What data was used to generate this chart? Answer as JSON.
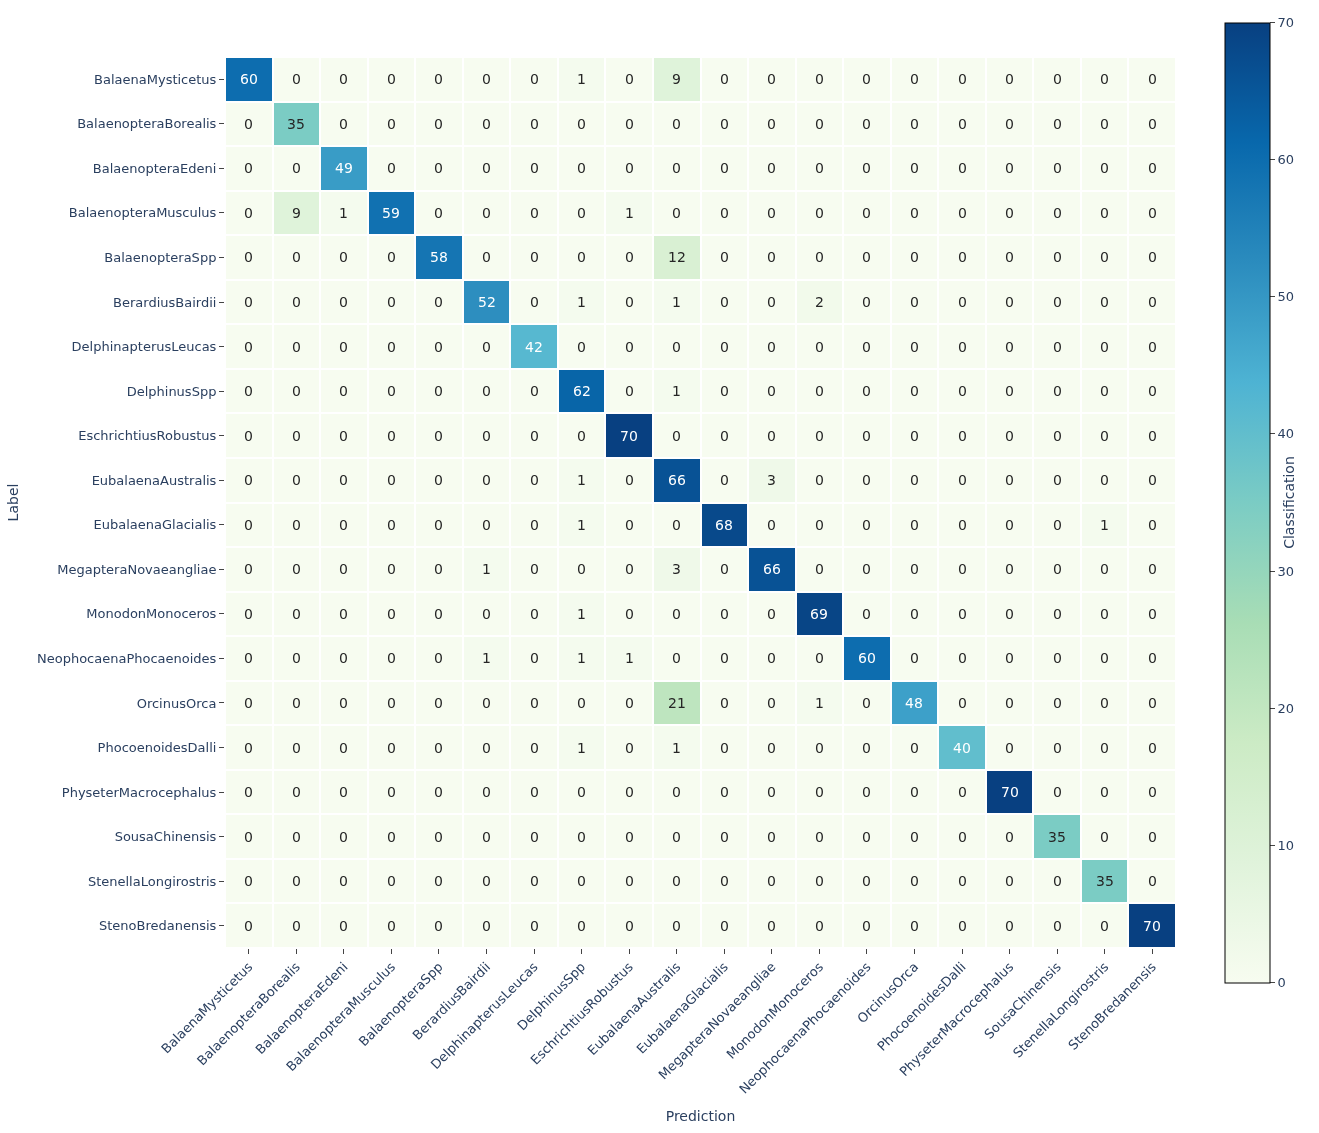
{
  "chart_data": {
    "type": "heatmap",
    "xlabel": "Prediction",
    "ylabel": "Label",
    "clabel": "Classification",
    "categories": [
      "BalaenaMysticetus",
      "BalaenopteraBorealis",
      "BalaenopteraEdeni",
      "BalaenopteraMusculus",
      "BalaenopteraSpp",
      "BerardiusBairdii",
      "DelphinapterusLeucas",
      "DelphinusSpp",
      "EschrichtiusRobustus",
      "EubalaenaAustralis",
      "EubalaenaGlacialis",
      "MegapteraNovaeangliae",
      "MonodonMonoceros",
      "NeophocaenaPhocaenoides",
      "OrcinusOrca",
      "PhocoenoidesDalli",
      "PhyseterMacrocephalus",
      "SousaChinensis",
      "StenellaLongirostris",
      "StenoBredanensis"
    ],
    "y_categories": [
      "BalaenaMysticetus",
      "BalaenopteraBorealis",
      "BalaenopteraEdeni",
      "BalaenopteraMusculus",
      "BalaenopteraSpp",
      "BerardiusBairdii",
      "DelphinapterusLeucas",
      "DelphinusSpp",
      "EschrichtiusRobustus",
      "EubalaenaAustralis",
      "EubalaenaGlacialis",
      "MegapteraNovaeangliae",
      "MonodonMonoceros",
      "NeophocaenaPhocaenoides",
      "OrcinusOrca",
      "PhocoenoidesDalli",
      "PhyseterMacrocephalus",
      "SousaChinensis",
      "StenellaLongirostris",
      "StenoBredanensis"
    ],
    "cells": [
      [
        60,
        0,
        0,
        0,
        0,
        0,
        0,
        1,
        0,
        9,
        0,
        0,
        0,
        0,
        0,
        0,
        0,
        0,
        0,
        0
      ],
      [
        0,
        35,
        0,
        0,
        0,
        0,
        0,
        0,
        0,
        0,
        0,
        0,
        0,
        0,
        0,
        0,
        0,
        0,
        0,
        0
      ],
      [
        0,
        0,
        49,
        0,
        0,
        0,
        0,
        0,
        0,
        0,
        0,
        0,
        0,
        0,
        0,
        0,
        0,
        0,
        0,
        0
      ],
      [
        0,
        9,
        1,
        59,
        0,
        0,
        0,
        0,
        1,
        0,
        0,
        0,
        0,
        0,
        0,
        0,
        0,
        0,
        0,
        0
      ],
      [
        0,
        0,
        0,
        0,
        58,
        0,
        0,
        0,
        0,
        12,
        0,
        0,
        0,
        0,
        0,
        0,
        0,
        0,
        0,
        0
      ],
      [
        0,
        0,
        0,
        0,
        0,
        52,
        0,
        1,
        0,
        1,
        0,
        0,
        2,
        0,
        0,
        0,
        0,
        0,
        0,
        0
      ],
      [
        0,
        0,
        0,
        0,
        0,
        0,
        42,
        0,
        0,
        0,
        0,
        0,
        0,
        0,
        0,
        0,
        0,
        0,
        0,
        0
      ],
      [
        0,
        0,
        0,
        0,
        0,
        0,
        0,
        62,
        0,
        1,
        0,
        0,
        0,
        0,
        0,
        0,
        0,
        0,
        0,
        0
      ],
      [
        0,
        0,
        0,
        0,
        0,
        0,
        0,
        0,
        70,
        0,
        0,
        0,
        0,
        0,
        0,
        0,
        0,
        0,
        0,
        0
      ],
      [
        0,
        0,
        0,
        0,
        0,
        0,
        0,
        1,
        0,
        66,
        0,
        3,
        0,
        0,
        0,
        0,
        0,
        0,
        0,
        0
      ],
      [
        0,
        0,
        0,
        0,
        0,
        0,
        0,
        1,
        0,
        0,
        68,
        0,
        0,
        0,
        0,
        0,
        0,
        0,
        1,
        0
      ],
      [
        0,
        0,
        0,
        0,
        0,
        1,
        0,
        0,
        0,
        3,
        0,
        66,
        0,
        0,
        0,
        0,
        0,
        0,
        0,
        0
      ],
      [
        0,
        0,
        0,
        0,
        0,
        0,
        0,
        1,
        0,
        0,
        0,
        0,
        69,
        0,
        0,
        0,
        0,
        0,
        0,
        0
      ],
      [
        0,
        0,
        0,
        0,
        0,
        1,
        0,
        1,
        1,
        0,
        0,
        0,
        0,
        60,
        0,
        0,
        0,
        0,
        0,
        0
      ],
      [
        0,
        0,
        0,
        0,
        0,
        0,
        0,
        0,
        0,
        21,
        0,
        0,
        1,
        0,
        48,
        0,
        0,
        0,
        0,
        0
      ],
      [
        0,
        0,
        0,
        0,
        0,
        0,
        0,
        1,
        0,
        1,
        0,
        0,
        0,
        0,
        0,
        40,
        0,
        0,
        0,
        0
      ],
      [
        0,
        0,
        0,
        0,
        0,
        0,
        0,
        0,
        0,
        0,
        0,
        0,
        0,
        0,
        0,
        0,
        70,
        0,
        0,
        0
      ],
      [
        0,
        0,
        0,
        0,
        0,
        0,
        0,
        0,
        0,
        0,
        0,
        0,
        0,
        0,
        0,
        0,
        0,
        35,
        0,
        0
      ],
      [
        0,
        0,
        0,
        0,
        0,
        0,
        0,
        0,
        0,
        0,
        0,
        0,
        0,
        0,
        0,
        0,
        0,
        0,
        35,
        0
      ],
      [
        0,
        0,
        0,
        0,
        0,
        0,
        0,
        0,
        0,
        0,
        0,
        0,
        0,
        0,
        0,
        0,
        0,
        0,
        0,
        70
      ]
    ],
    "clim": [
      0,
      70
    ],
    "cticks": [
      0,
      10,
      20,
      30,
      40,
      50,
      60,
      70
    ],
    "data_labels": true
  }
}
